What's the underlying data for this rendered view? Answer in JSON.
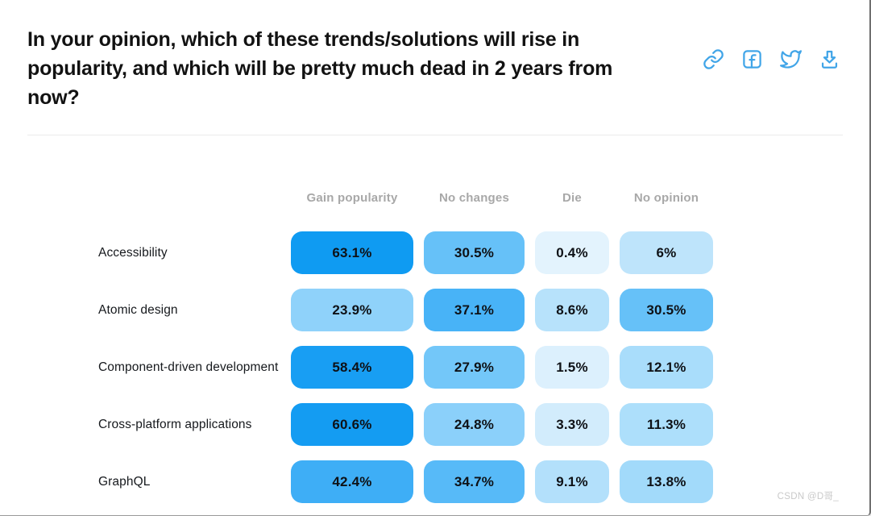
{
  "page": {
    "title": "In your opinion, which of these trends/solutions will rise in popularity, and which will be pretty much dead in 2 years from now?",
    "watermark": "CSDN @D哥_"
  },
  "toolbar": {
    "icon_color": "#41a5e8",
    "icons": [
      "link-icon",
      "facebook-icon",
      "twitter-icon",
      "download-icon"
    ]
  },
  "chart_data": {
    "type": "heatmap",
    "title": "In your opinion, which of these trends/solutions will rise in popularity, and which will be pretty much dead in 2 years from now?",
    "columns": [
      "Gain popularity",
      "No changes",
      "Die",
      "No opinion"
    ],
    "rows": [
      {
        "label": "Accessibility",
        "values": [
          63.1,
          30.5,
          0.4,
          6
        ],
        "labels": [
          "63.1%",
          "30.5%",
          "0.4%",
          "6%"
        ],
        "colors": [
          "#0f9bf2",
          "#66c1f8",
          "#e3f3fd",
          "#bee4fb"
        ]
      },
      {
        "label": "Atomic design",
        "values": [
          23.9,
          37.1,
          8.6,
          30.5
        ],
        "labels": [
          "23.9%",
          "37.1%",
          "8.6%",
          "30.5%"
        ],
        "colors": [
          "#8fd2fa",
          "#48b3f7",
          "#b7e2fb",
          "#66c1f8"
        ]
      },
      {
        "label": "Component-driven development",
        "values": [
          58.4,
          27.9,
          1.5,
          12.1
        ],
        "labels": [
          "58.4%",
          "27.9%",
          "1.5%",
          "12.1%"
        ],
        "colors": [
          "#189ef3",
          "#73c7f9",
          "#dcf0fd",
          "#a9ddfb"
        ]
      },
      {
        "label": "Cross-platform applications",
        "values": [
          60.6,
          24.8,
          3.3,
          11.3
        ],
        "labels": [
          "60.6%",
          "24.8%",
          "3.3%",
          "11.3%"
        ],
        "colors": [
          "#149cf2",
          "#8bd0fa",
          "#d2ecfc",
          "#addffb"
        ]
      },
      {
        "label": "GraphQL",
        "values": [
          42.4,
          34.7,
          9.1,
          13.8
        ],
        "labels": [
          "42.4%",
          "34.7%",
          "9.1%",
          "13.8%"
        ],
        "colors": [
          "#3eaef6",
          "#57baf8",
          "#b3e0fb",
          "#a2dafa"
        ]
      }
    ],
    "value_range": [
      0,
      63.1
    ],
    "cell_text_color": "#0e1116",
    "legend_position": "none",
    "grid": false
  }
}
